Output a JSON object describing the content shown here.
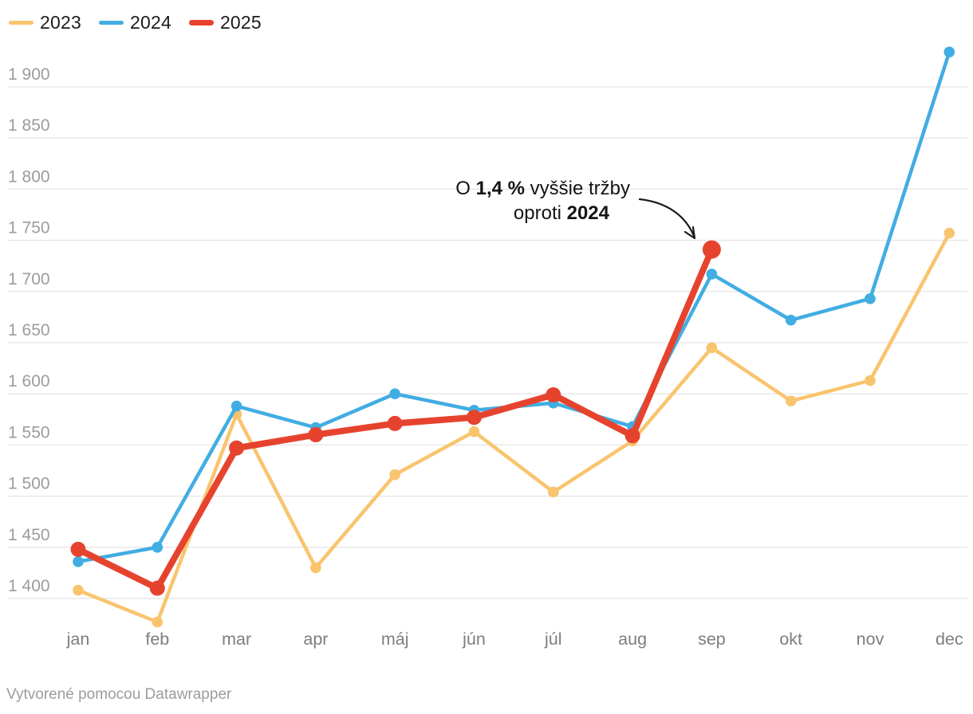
{
  "chart_data": {
    "type": "line",
    "categories": [
      "jan",
      "feb",
      "mar",
      "apr",
      "máj",
      "jún",
      "júl",
      "aug",
      "sep",
      "okt",
      "nov",
      "dec"
    ],
    "series": [
      {
        "name": "2023",
        "color": "#F9C46E",
        "values": [
          1408,
          1377,
          1580,
          1430,
          1521,
          1563,
          1504,
          1554,
          1645,
          1593,
          1613,
          1757
        ]
      },
      {
        "name": "2024",
        "color": "#41ADE2",
        "values": [
          1436,
          1450,
          1588,
          1567,
          1600,
          1584,
          1591,
          1568,
          1717,
          1672,
          1693,
          1934
        ]
      },
      {
        "name": "2025",
        "color": "#E6432E",
        "values": [
          1448,
          1410,
          1547,
          1560,
          1571,
          1577,
          1599,
          1559,
          1741
        ]
      }
    ],
    "y_ticks": [
      {
        "value": 1400,
        "label": "1 400"
      },
      {
        "value": 1450,
        "label": "1 450"
      },
      {
        "value": 1500,
        "label": "1 500"
      },
      {
        "value": 1550,
        "label": "1 550"
      },
      {
        "value": 1600,
        "label": "1 600"
      },
      {
        "value": 1650,
        "label": "1 650"
      },
      {
        "value": 1700,
        "label": "1 700"
      },
      {
        "value": 1750,
        "label": "1 750"
      },
      {
        "value": 1800,
        "label": "1 800"
      },
      {
        "value": 1850,
        "label": "1 850"
      },
      {
        "value": 1900,
        "label": "1 900"
      }
    ],
    "ylim": [
      1360,
      1940
    ],
    "grid": "horizontal",
    "legend_position": "top-left"
  },
  "annotation": {
    "prefix": "O ",
    "bold_value": "1,4 %",
    "suffix": " vyššie tržby",
    "line2_prefix": "oproti ",
    "line2_bold": "2024",
    "arrow_target": "2025 sep"
  },
  "footer": {
    "credit": "Vytvorené pomocou Datawrapper"
  },
  "colors": {
    "grid": "#e8e8e8",
    "y_tick_text": "#9c9c9c",
    "x_tick_text": "#7d7d7d",
    "annotation_arrow": "#1a1a1a"
  }
}
